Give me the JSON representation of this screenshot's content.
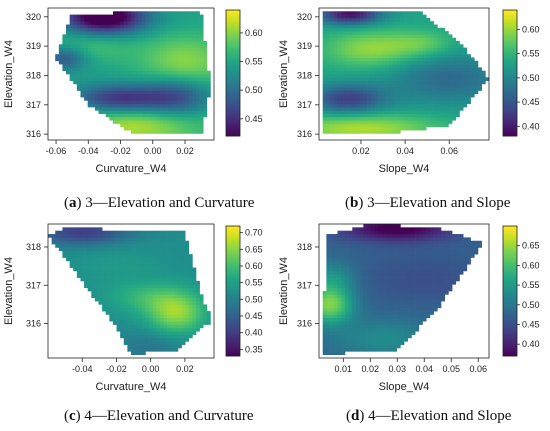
{
  "chart_data": [
    {
      "type": "heatmap",
      "panel_tag": "a",
      "caption": "3—Elevation and Curvature",
      "xlabel": "Curvature_W4",
      "ylabel": "Elevation_W4",
      "xlim": [
        -0.065,
        0.038
      ],
      "ylim": [
        315.8,
        320.3
      ],
      "xticks": [
        -0.06,
        -0.04,
        -0.02,
        0.0,
        0.02
      ],
      "xtick_labels": [
        "-0.06",
        "-0.04",
        "-0.02",
        "0.00",
        "0.02"
      ],
      "yticks": [
        316,
        317,
        318,
        319,
        320
      ],
      "ytick_labels": [
        "316",
        "317",
        "318",
        "319",
        "320"
      ],
      "colorbar": {
        "min": 0.42,
        "max": 0.64,
        "ticks": [
          0.45,
          0.5,
          0.55,
          0.6
        ],
        "tick_labels": [
          "0.45",
          "0.50",
          "0.55",
          "0.60"
        ]
      },
      "colormap": "viridis",
      "domain_polygon": [
        [
          -0.06,
          318.6
        ],
        [
          -0.05,
          320.1
        ],
        [
          0.03,
          320.2
        ],
        [
          0.036,
          317.6
        ],
        [
          0.03,
          316.0
        ],
        [
          -0.012,
          316.0
        ],
        [
          -0.04,
          317.0
        ]
      ],
      "value_kernels": [
        {
          "cx": -0.03,
          "cy": 320.0,
          "sx": 0.018,
          "sy": 0.4,
          "amp": -0.16
        },
        {
          "cx": 0.02,
          "cy": 318.4,
          "sx": 0.02,
          "sy": 0.7,
          "amp": 0.06
        },
        {
          "cx": -0.01,
          "cy": 316.3,
          "sx": 0.03,
          "sy": 0.5,
          "amp": 0.07
        },
        {
          "cx": -0.02,
          "cy": 317.2,
          "sx": 0.02,
          "sy": 0.35,
          "amp": -0.1
        },
        {
          "cx": 0.015,
          "cy": 317.3,
          "sx": 0.015,
          "sy": 0.5,
          "amp": -0.08
        },
        {
          "cx": -0.055,
          "cy": 318.6,
          "sx": 0.01,
          "sy": 0.3,
          "amp": -0.07
        },
        {
          "cx": -0.04,
          "cy": 319.0,
          "sx": 0.02,
          "sy": 0.4,
          "amp": 0.03
        }
      ],
      "base_value": 0.545
    },
    {
      "type": "heatmap",
      "panel_tag": "b",
      "caption": "3—Elevation and Slope",
      "xlabel": "Slope_W4",
      "ylabel": "Elevation_W4",
      "xlim": [
        0.001,
        0.078
      ],
      "ylim": [
        315.8,
        320.3
      ],
      "xticks": [
        0.02,
        0.04,
        0.06
      ],
      "xtick_labels": [
        "0.02",
        "0.04",
        "0.06"
      ],
      "yticks": [
        316,
        317,
        318,
        319,
        320
      ],
      "ytick_labels": [
        "316",
        "317",
        "318",
        "319",
        "320"
      ],
      "colorbar": {
        "min": 0.38,
        "max": 0.64,
        "ticks": [
          0.4,
          0.45,
          0.5,
          0.55,
          0.6
        ],
        "tick_labels": [
          "0.40",
          "0.45",
          "0.50",
          "0.55",
          "0.60"
        ]
      },
      "colormap": "viridis",
      "domain_polygon": [
        [
          0.002,
          316.0
        ],
        [
          0.002,
          320.2
        ],
        [
          0.046,
          320.2
        ],
        [
          0.064,
          319.2
        ],
        [
          0.078,
          317.9
        ],
        [
          0.06,
          316.3
        ],
        [
          0.03,
          316.0
        ]
      ],
      "value_kernels": [
        {
          "cx": 0.015,
          "cy": 320.1,
          "sx": 0.01,
          "sy": 0.25,
          "amp": -0.14
        },
        {
          "cx": 0.025,
          "cy": 318.9,
          "sx": 0.015,
          "sy": 0.45,
          "amp": 0.07
        },
        {
          "cx": 0.014,
          "cy": 317.2,
          "sx": 0.012,
          "sy": 0.35,
          "amp": -0.1
        },
        {
          "cx": 0.02,
          "cy": 316.2,
          "sx": 0.025,
          "sy": 0.35,
          "amp": 0.08
        },
        {
          "cx": 0.06,
          "cy": 317.9,
          "sx": 0.02,
          "sy": 0.6,
          "amp": -0.06
        },
        {
          "cx": 0.048,
          "cy": 319.1,
          "sx": 0.01,
          "sy": 0.3,
          "amp": 0.04
        }
      ],
      "base_value": 0.53
    },
    {
      "type": "heatmap",
      "panel_tag": "c",
      "caption": "4—Elevation and Curvature",
      "xlabel": "Curvature_W4",
      "ylabel": "Elevation_W4",
      "xlim": [
        -0.06,
        0.037
      ],
      "ylim": [
        315.1,
        318.6
      ],
      "xticks": [
        -0.04,
        -0.02,
        0.0,
        0.02
      ],
      "xtick_labels": [
        "-0.04",
        "-0.02",
        "0.00",
        "0.02"
      ],
      "yticks": [
        316,
        317,
        318
      ],
      "ytick_labels": [
        "316",
        "317",
        "318"
      ],
      "colorbar": {
        "min": 0.33,
        "max": 0.72,
        "ticks": [
          0.35,
          0.4,
          0.45,
          0.5,
          0.55,
          0.6,
          0.65,
          0.7
        ],
        "tick_labels": [
          "0.35",
          "0.40",
          "0.45",
          "0.50",
          "0.55",
          "0.60",
          "0.65",
          "0.70"
        ]
      },
      "colormap": "viridis",
      "domain_polygon": [
        [
          -0.06,
          318.3
        ],
        [
          -0.05,
          318.5
        ],
        [
          0.02,
          318.4
        ],
        [
          0.03,
          316.7
        ],
        [
          0.036,
          316.1
        ],
        [
          0.015,
          315.3
        ],
        [
          -0.012,
          315.2
        ],
        [
          -0.02,
          315.9
        ]
      ],
      "value_kernels": [
        {
          "cx": -0.04,
          "cy": 318.4,
          "sx": 0.02,
          "sy": 0.25,
          "amp": -0.12
        },
        {
          "cx": 0.015,
          "cy": 316.3,
          "sx": 0.012,
          "sy": 0.4,
          "amp": 0.14
        },
        {
          "cx": -0.005,
          "cy": 316.7,
          "sx": 0.015,
          "sy": 0.3,
          "amp": 0.06
        },
        {
          "cx": -0.02,
          "cy": 317.6,
          "sx": 0.02,
          "sy": 0.4,
          "amp": 0.02
        },
        {
          "cx": 0.0,
          "cy": 315.4,
          "sx": 0.015,
          "sy": 0.3,
          "amp": -0.04
        }
      ],
      "base_value": 0.52
    },
    {
      "type": "heatmap",
      "panel_tag": "d",
      "caption": "4—Elevation and Slope",
      "xlabel": "Slope_W4",
      "ylabel": "Elevation_W4",
      "xlim": [
        0.001,
        0.064
      ],
      "ylim": [
        315.1,
        318.6
      ],
      "xticks": [
        0.01,
        0.02,
        0.03,
        0.04,
        0.05,
        0.06
      ],
      "xtick_labels": [
        "0.01",
        "0.02",
        "0.03",
        "0.04",
        "0.05",
        "0.06"
      ],
      "yticks": [
        316,
        317,
        318
      ],
      "ytick_labels": [
        "316",
        "317",
        "318"
      ],
      "colorbar": {
        "min": 0.37,
        "max": 0.7,
        "ticks": [
          0.4,
          0.45,
          0.5,
          0.55,
          0.6,
          0.65
        ],
        "tick_labels": [
          "0.40",
          "0.45",
          "0.50",
          "0.55",
          "0.60",
          "0.65"
        ]
      },
      "colormap": "viridis",
      "domain_polygon": [
        [
          0.002,
          315.2
        ],
        [
          0.004,
          318.3
        ],
        [
          0.02,
          318.6
        ],
        [
          0.045,
          318.5
        ],
        [
          0.062,
          318.1
        ],
        [
          0.045,
          316.4
        ],
        [
          0.03,
          315.3
        ]
      ],
      "value_kernels": [
        {
          "cx": 0.03,
          "cy": 318.5,
          "sx": 0.015,
          "sy": 0.25,
          "amp": -0.12
        },
        {
          "cx": 0.005,
          "cy": 316.5,
          "sx": 0.006,
          "sy": 0.35,
          "amp": 0.16
        },
        {
          "cx": 0.006,
          "cy": 317.2,
          "sx": 0.006,
          "sy": 0.3,
          "amp": 0.06
        },
        {
          "cx": 0.025,
          "cy": 315.6,
          "sx": 0.012,
          "sy": 0.35,
          "amp": 0.05
        },
        {
          "cx": 0.04,
          "cy": 317.2,
          "sx": 0.02,
          "sy": 0.5,
          "amp": -0.03
        }
      ],
      "base_value": 0.48
    }
  ],
  "captions": {
    "a": {
      "tag": "a",
      "text": "3—Elevation and Curvature"
    },
    "b": {
      "tag": "b",
      "text": "3—Elevation and Slope"
    },
    "c": {
      "tag": "c",
      "text": "4—Elevation and Curvature"
    },
    "d": {
      "tag": "d",
      "text": "4—Elevation and Slope"
    }
  }
}
